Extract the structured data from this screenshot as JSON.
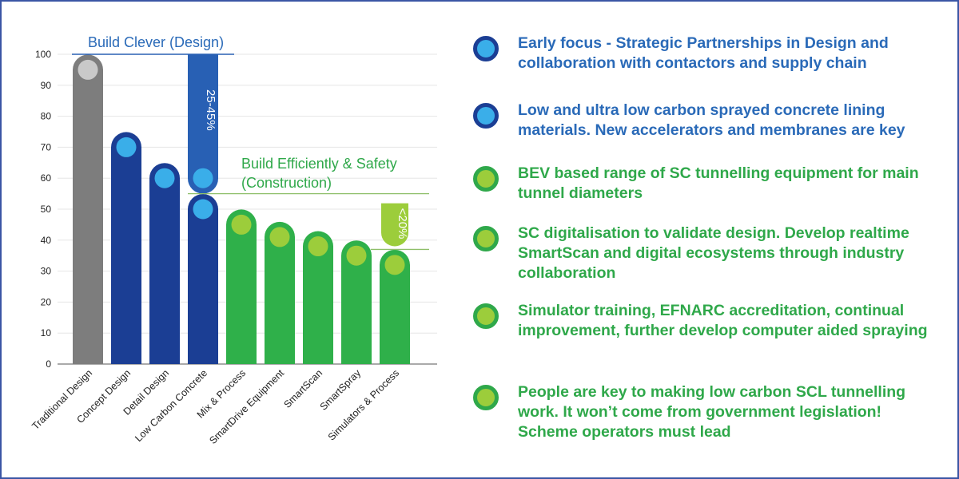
{
  "colors": {
    "grey": "#7d7d7d",
    "grey_dot": "#c9c9c9",
    "dark_blue": "#1b3e94",
    "mid_blue": "#2860b4",
    "light_blue": "#3aaee9",
    "green": "#2fb04a",
    "light_green": "#9ccd3b",
    "blue_text": "#2a6ab8",
    "green_text": "#2fa84a"
  },
  "chart_data": {
    "type": "bar",
    "categories": [
      "Traditional Design",
      "Concept Design",
      "Detail Design",
      "Low Carbon Concrete",
      "Mix & Process",
      "SmartDrive Equipment",
      "SmartScan",
      "SmartSpray",
      "Simulators & Process"
    ],
    "values": [
      95,
      70,
      60,
      50,
      45,
      41,
      38,
      35,
      32
    ],
    "bar_colors": [
      "grey",
      "dark_blue",
      "dark_blue",
      "dark_blue",
      "green",
      "green",
      "green",
      "green",
      "green"
    ],
    "ylim": [
      0,
      100
    ],
    "yticks": [
      "0",
      "10",
      "20",
      "30",
      "40",
      "50",
      "60",
      "70",
      "80",
      "90",
      "100"
    ],
    "annotations": {
      "design_label": "Build Clever (Design)",
      "design_range": "25-45%",
      "design_range_top": 100,
      "design_range_bottom": 55,
      "construction_label_line1": "Build Efficiently & Safety",
      "construction_label_line2": "(Construction)",
      "construction_range": "<20%",
      "construction_range_top": 55,
      "construction_range_bottom": 37,
      "design_marker_value": 60
    }
  },
  "bullets": [
    {
      "text": "Early focus - Strategic Partnerships in Design and collaboration with contactors and supply chain",
      "color": "blue"
    },
    {
      "text": "Low and ultra low carbon sprayed concrete lining materials. New accelerators and membranes are key",
      "color": "blue"
    },
    {
      "text": "BEV based range of SC tunnelling equipment for main tunnel diameters",
      "color": "green"
    },
    {
      "text": "SC digitalisation to validate design. Develop realtime SmartScan and digital ecosystems through industry collaboration",
      "color": "green"
    },
    {
      "text": "Simulator training, EFNARC accreditation, continual improvement, further develop computer aided spraying",
      "color": "green"
    },
    {
      "text": "People are key to making low carbon SCL tunnelling work. It won’t come from government legislation! Scheme operators must lead",
      "color": "green"
    }
  ]
}
